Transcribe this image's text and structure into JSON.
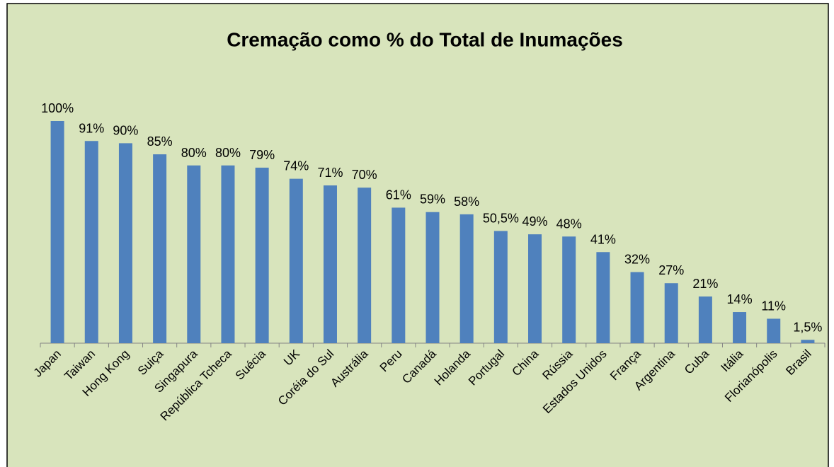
{
  "chart_data": {
    "type": "bar",
    "title": "Cremação como % do Total de Inumações",
    "categories": [
      "Japan",
      "Taiwan",
      "Hong Kong",
      "Suiça",
      "Singapura",
      "República Tcheca",
      "Suécia",
      "UK",
      "Coréia do Sul",
      "Austrália",
      "Peru",
      "Canadá",
      "Holanda",
      "Portugal",
      "China",
      "Rússia",
      "Estados Unidos",
      "França",
      "Argentina",
      "Cuba",
      "Itália",
      "Florianópolis",
      "Brasil"
    ],
    "values": [
      100,
      91,
      90,
      85,
      80,
      80,
      79,
      74,
      71,
      70,
      61,
      59,
      58,
      50.5,
      49,
      48,
      41,
      32,
      27,
      21,
      14,
      11,
      1.5
    ],
    "value_labels": [
      "100%",
      "91%",
      "90%",
      "85%",
      "80%",
      "80%",
      "79%",
      "74%",
      "71%",
      "70%",
      "61%",
      "59%",
      "58%",
      "50,5%",
      "49%",
      "48%",
      "41%",
      "32%",
      "27%",
      "21%",
      "14%",
      "11%",
      "1,5%"
    ],
    "color": "#4f81bd"
  }
}
